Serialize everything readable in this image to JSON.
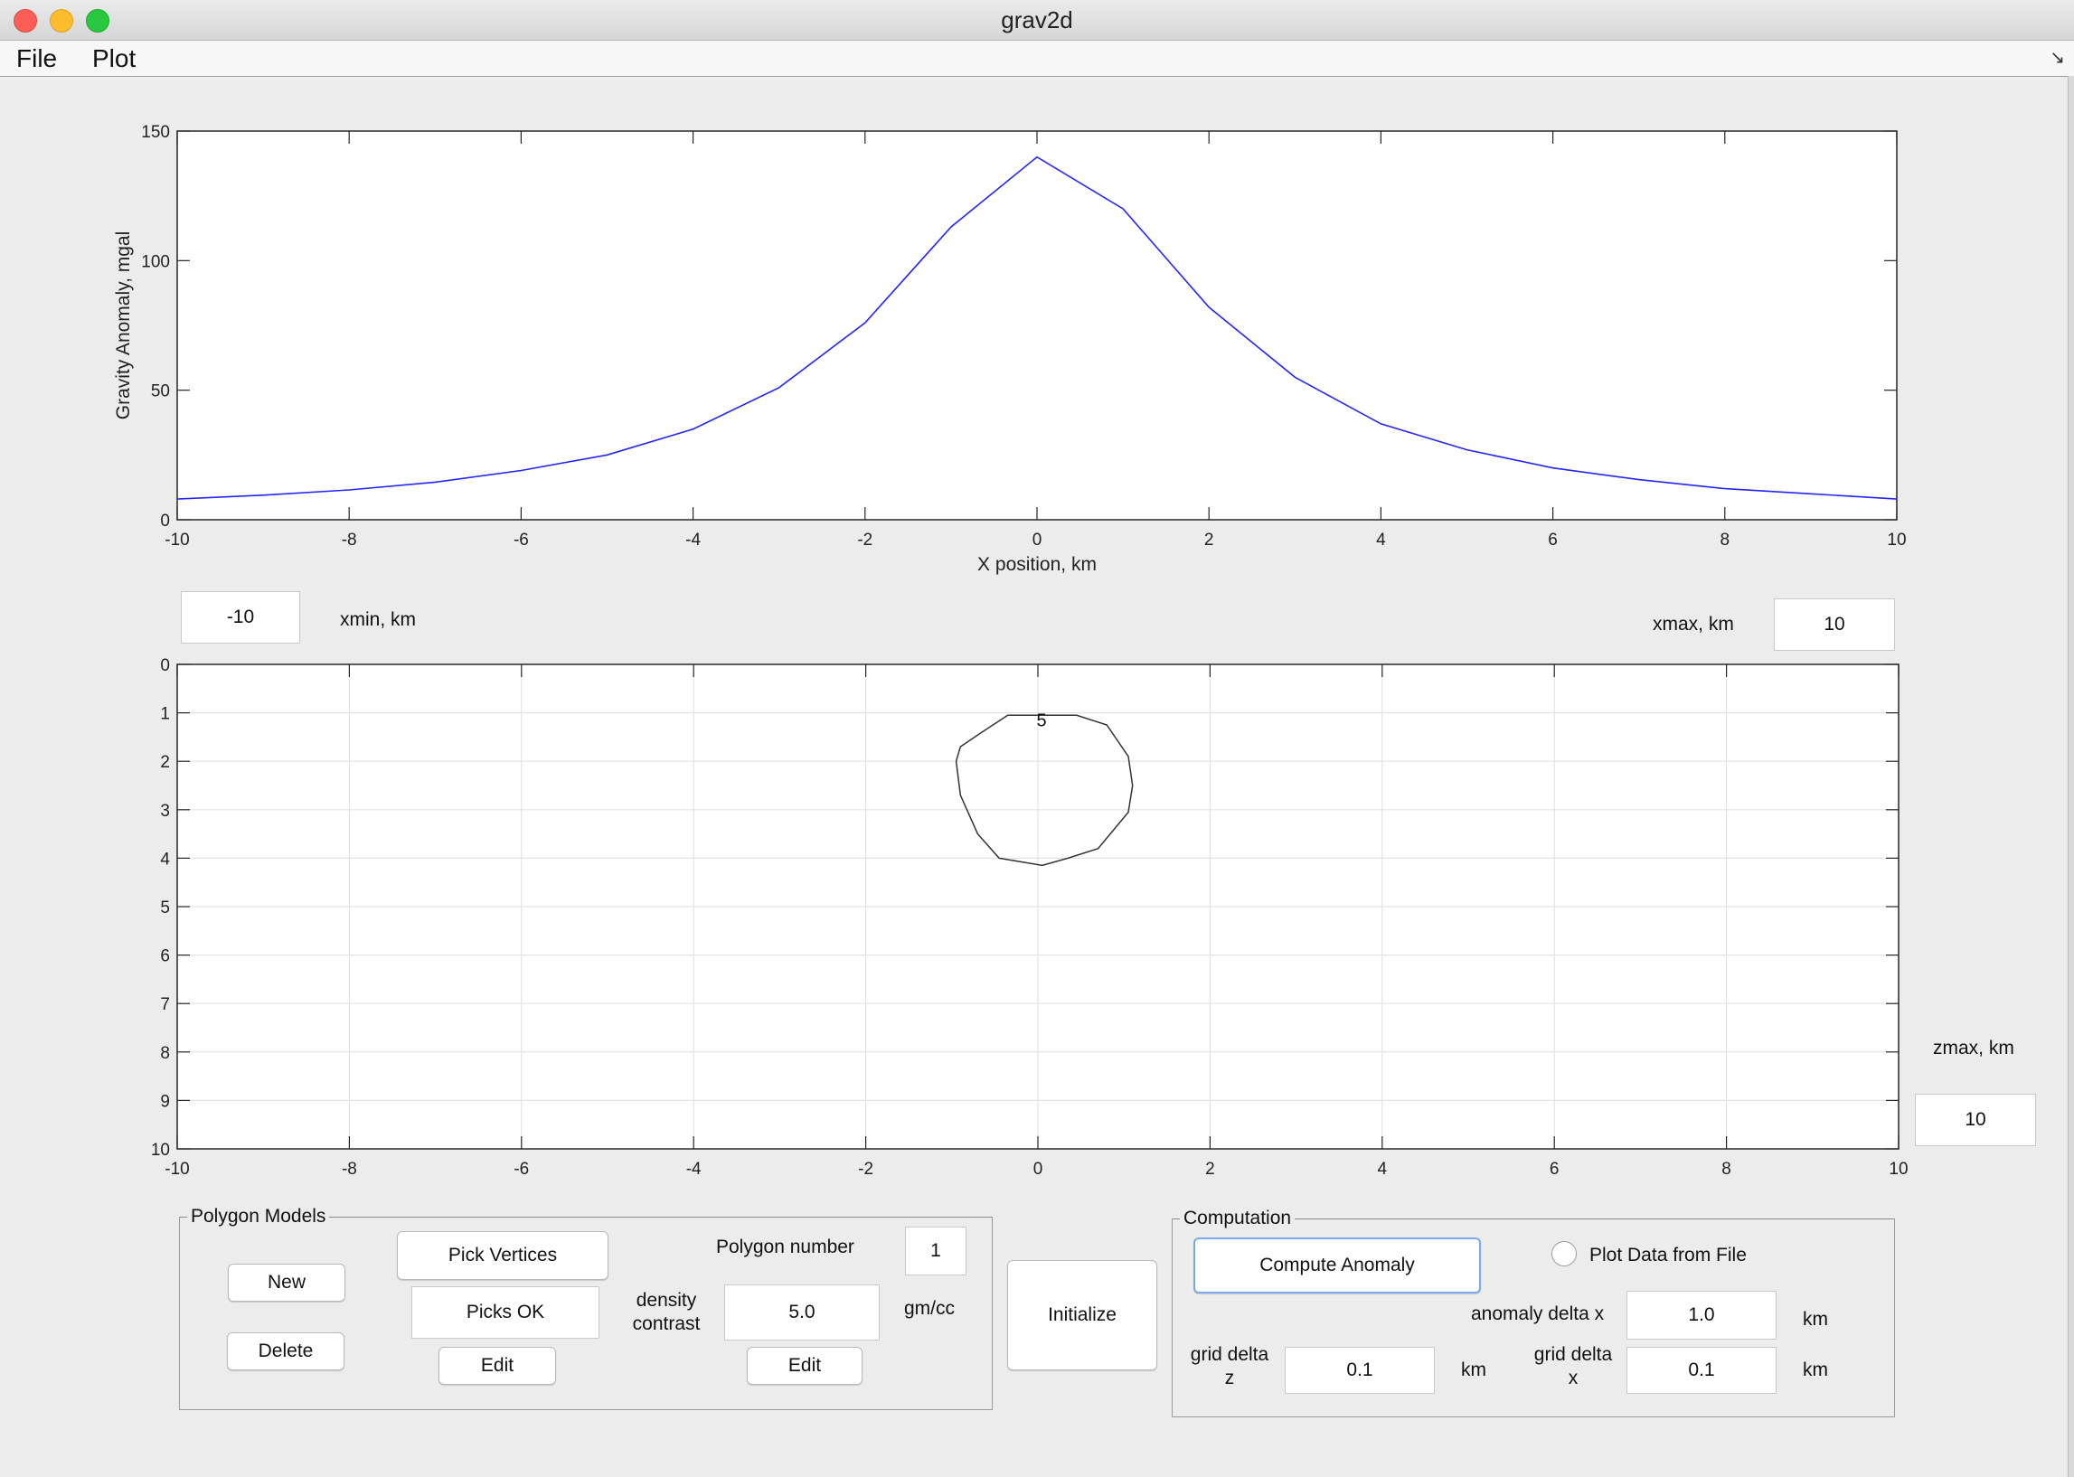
{
  "window": {
    "title": "grav2d"
  },
  "menu": {
    "file": "File",
    "plot": "Plot"
  },
  "anomaly_plot": {
    "ylabel": "Gravity Anomaly, mgal",
    "xlabel": "X position, km",
    "line_color": "#2424ff"
  },
  "model_plot": {
    "polygon_label": "5",
    "line_color": "#333333"
  },
  "chart_data": [
    {
      "type": "line",
      "xlabel": "X position, km",
      "ylabel": "Gravity Anomaly, mgal",
      "xlim": [
        -10,
        10
      ],
      "ylim": [
        0,
        150
      ],
      "xticks": [
        -10,
        -8,
        -6,
        -4,
        -2,
        0,
        2,
        4,
        6,
        8,
        10
      ],
      "yticks": [
        0,
        50,
        100,
        150
      ],
      "grid": false,
      "series": [
        {
          "x": [
            -10,
            -9,
            -8,
            -7,
            -6,
            -5,
            -4,
            -3,
            -2,
            -1,
            0,
            1,
            2,
            3,
            4,
            5,
            6,
            7,
            8,
            9,
            10
          ],
          "values": [
            8,
            9.5,
            11.5,
            14.5,
            19,
            25,
            35,
            51,
            76,
            113,
            140,
            120,
            82,
            55,
            37,
            27,
            20,
            15.5,
            12,
            10,
            8
          ]
        }
      ]
    },
    {
      "type": "line",
      "xlim": [
        -10,
        10
      ],
      "ylim": [
        10,
        0
      ],
      "y_inverted": true,
      "xticks": [
        -10,
        -8,
        -6,
        -4,
        -2,
        0,
        2,
        4,
        6,
        8,
        10
      ],
      "yticks": [
        0,
        1,
        2,
        3,
        4,
        5,
        6,
        7,
        8,
        9,
        10
      ],
      "grid": true,
      "series": [
        {
          "closed": true,
          "x": [
            -0.35,
            0.45,
            0.8,
            1.05,
            1.1,
            1.05,
            0.7,
            0.35,
            0.05,
            -0.45,
            -0.7,
            -0.9,
            -0.95,
            -0.9,
            -0.65
          ],
          "values": [
            1.05,
            1.05,
            1.25,
            1.9,
            2.5,
            3.05,
            3.8,
            4.0,
            4.15,
            4.0,
            3.5,
            2.7,
            2.0,
            1.7,
            1.4
          ]
        }
      ]
    }
  ],
  "xmin": {
    "value": "-10",
    "label": "xmin, km"
  },
  "xmax": {
    "value": "10",
    "label": "xmax, km"
  },
  "zmax": {
    "value": "10",
    "label": "zmax, km"
  },
  "polygon_panel": {
    "title": "Polygon Models",
    "new": "New",
    "delete": "Delete",
    "pick_vertices": "Pick Vertices",
    "picks_ok": "Picks OK",
    "edit_vertices": "Edit",
    "polygon_number_label": "Polygon number",
    "polygon_number": "1",
    "density_label": "density contrast",
    "density_value": "5.0",
    "density_unit": "gm/cc",
    "edit_density": "Edit"
  },
  "initialize": "Initialize",
  "computation_panel": {
    "title": "Computation",
    "compute": "Compute Anomaly",
    "plot_data_label": "Plot Data from File",
    "anomaly_dx_label": "anomaly delta x",
    "anomaly_dx": "1.0",
    "anomaly_dx_unit": "km",
    "grid_dz_label": "grid delta z",
    "grid_dz": "0.1",
    "grid_dz_unit": "km",
    "grid_dx_label": "grid delta x",
    "grid_dx": "0.1",
    "grid_dx_unit": "km"
  }
}
